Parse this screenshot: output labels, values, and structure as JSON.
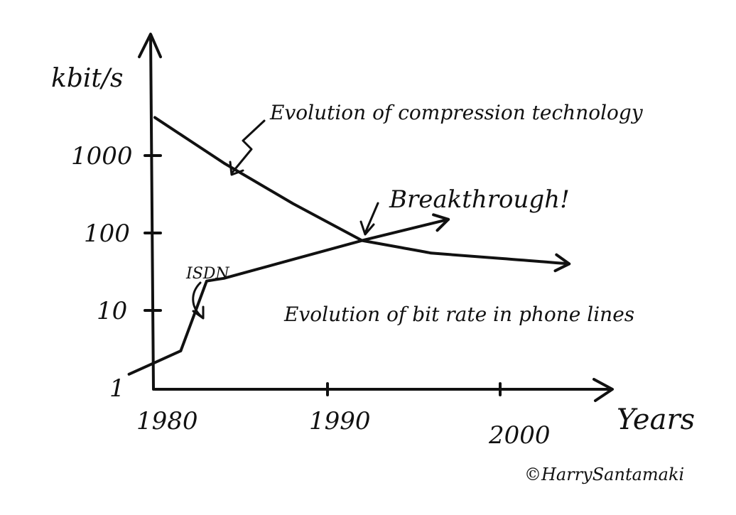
{
  "chart_data": {
    "type": "line",
    "title": "",
    "xlabel": "Years",
    "ylabel": "kbit/s",
    "x_ticks": [
      "1980",
      "1990",
      "2000"
    ],
    "y_ticks": [
      "1",
      "10",
      "100",
      "1000"
    ],
    "y_scale": "log",
    "xlim": [
      1980,
      2027
    ],
    "ylim": [
      1,
      10000
    ],
    "grid": false,
    "series": [
      {
        "name": "Evolution of compression technology",
        "x": [
          1980,
          1984,
          1988,
          1992,
          1996,
          2004
        ],
        "y": [
          3100,
          800,
          240,
          80,
          55,
          40
        ]
      },
      {
        "name": "Evolution of bit rate in phone lines",
        "x": [
          1978.5,
          1981.5,
          1983,
          1984,
          1992,
          1997
        ],
        "y": [
          1.5,
          3,
          24,
          26,
          80,
          150
        ]
      }
    ],
    "annotations": [
      {
        "text": "ISDN",
        "x": 1982.5,
        "y": 20
      },
      {
        "text": "Breakthrough!",
        "x": 1992,
        "y": 80
      }
    ]
  },
  "credit": "©HarrySantamaki"
}
